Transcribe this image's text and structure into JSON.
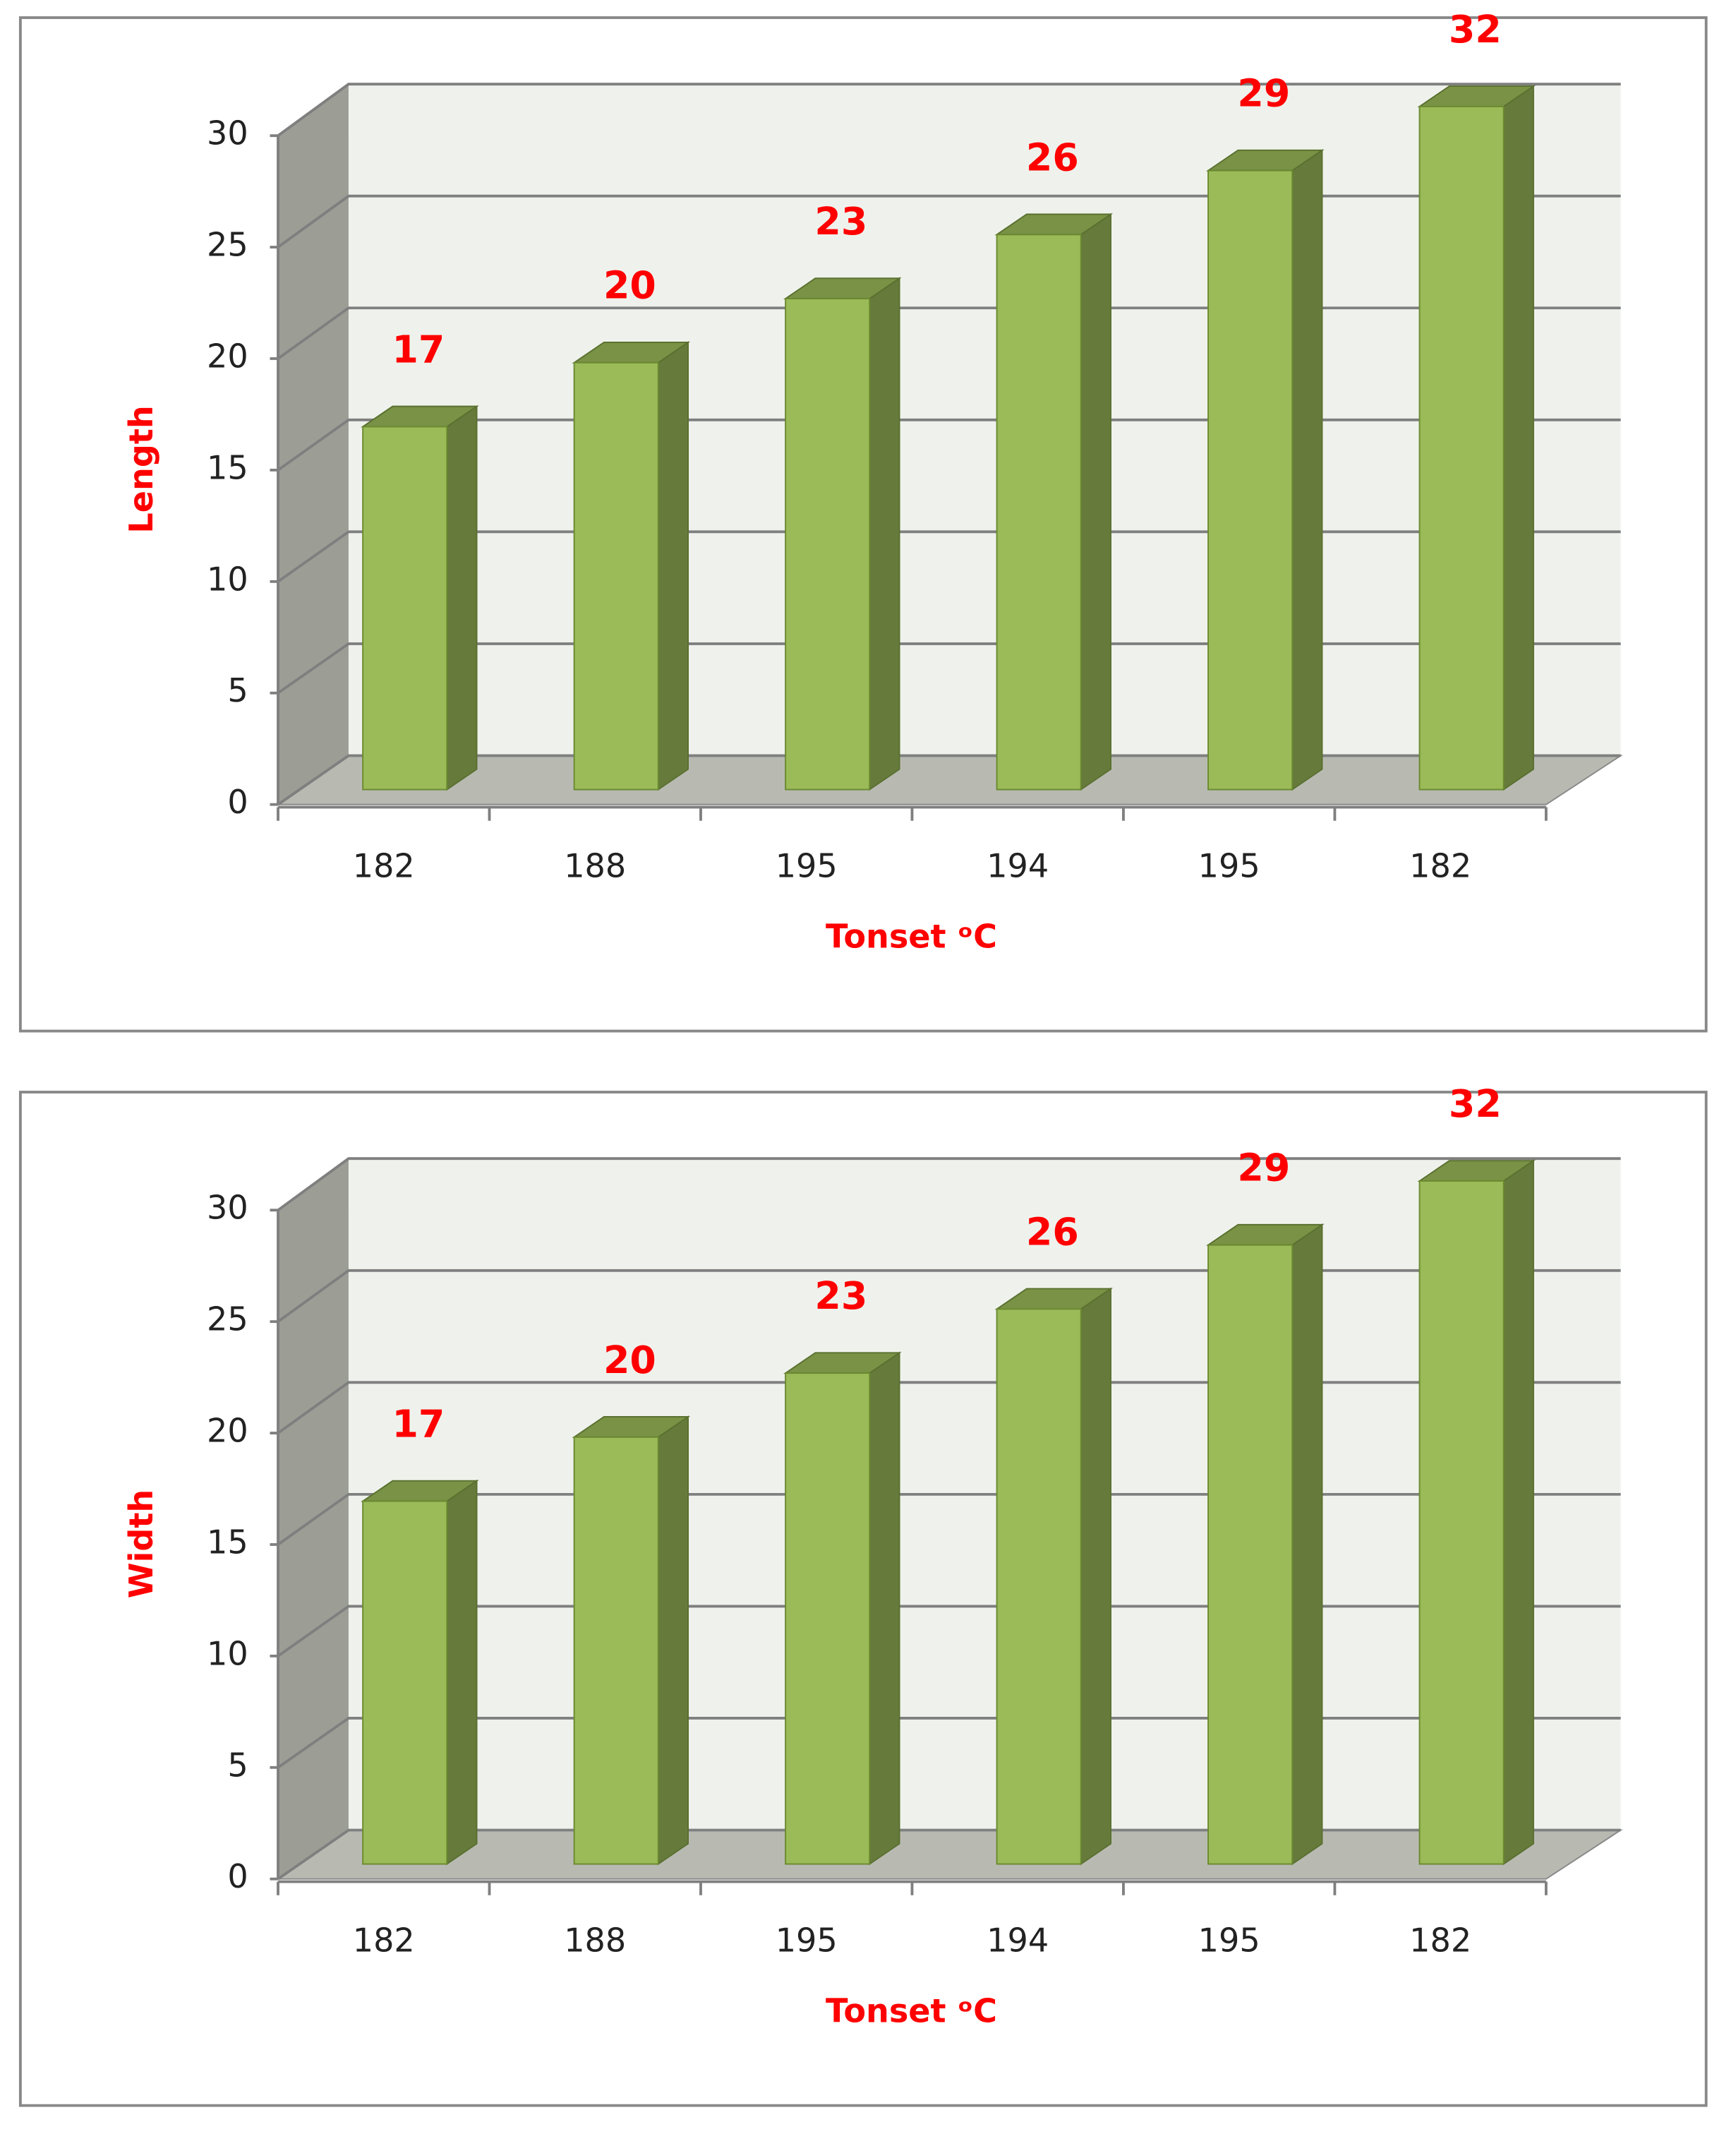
{
  "chart_data": [
    {
      "type": "bar3d",
      "y_label": "Length",
      "x_label": "Tonset ᵒC",
      "categories": [
        "182",
        "188",
        "195",
        "194",
        "195",
        "182"
      ],
      "values": [
        17,
        20,
        23,
        26,
        29,
        32
      ],
      "color": "#9bbb59",
      "ylim": [
        0,
        30
      ],
      "yticks": [
        0,
        5,
        10,
        15,
        20,
        25,
        30
      ],
      "grid": true
    },
    {
      "type": "bar3d",
      "y_label": "Width",
      "x_label": "Tonset ᵒC",
      "categories": [
        "182",
        "188",
        "195",
        "194",
        "195",
        "182"
      ],
      "values": [
        17,
        20,
        23,
        26,
        29,
        32
      ],
      "color": "#9bbb59",
      "ylim": [
        0,
        30
      ],
      "yticks": [
        0,
        5,
        10,
        15,
        20,
        25,
        30
      ],
      "grid": true
    }
  ]
}
